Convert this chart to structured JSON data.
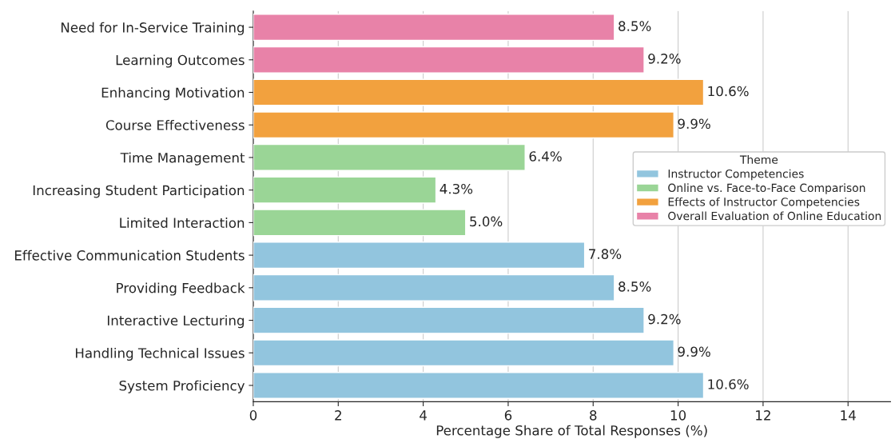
{
  "chart_data": {
    "type": "bar",
    "orientation": "horizontal",
    "categories": [
      "Need for In-Service Training",
      "Learning Outcomes",
      "Enhancing Motivation",
      "Course Effectiveness",
      "Time Management",
      "Increasing Student Participation",
      "Limited Interaction",
      "Effective Communication Students",
      "Providing Feedback",
      "Interactive Lecturing",
      "Handling Technical Issues",
      "System Proficiency"
    ],
    "series": [
      {
        "name": "Instructor Competencies",
        "color": "#92c5de",
        "values": [
          null,
          null,
          null,
          null,
          null,
          null,
          null,
          7.8,
          8.5,
          9.2,
          9.9,
          10.6
        ],
        "value_labels": [
          null,
          null,
          null,
          null,
          null,
          null,
          null,
          "7.8%",
          "8.5%",
          "9.2%",
          "9.9%",
          "10.6%"
        ]
      },
      {
        "name": "Online vs. Face-to-Face Comparison",
        "color": "#9ad596",
        "values": [
          null,
          null,
          null,
          null,
          6.4,
          4.3,
          5.0,
          null,
          null,
          null,
          null,
          null
        ],
        "value_labels": [
          null,
          null,
          null,
          null,
          "6.4%",
          "4.3%",
          "5.0%",
          null,
          null,
          null,
          null,
          null
        ]
      },
      {
        "name": "Effects of Instructor Competencies",
        "color": "#f2a13e",
        "values": [
          null,
          null,
          10.6,
          9.9,
          null,
          null,
          null,
          null,
          null,
          null,
          null,
          null
        ],
        "value_labels": [
          null,
          null,
          "10.6%",
          "9.9%",
          null,
          null,
          null,
          null,
          null,
          null,
          null,
          null
        ]
      },
      {
        "name": "Overall Evaluation of Online Education",
        "color": "#e882a8",
        "values": [
          8.5,
          9.2,
          null,
          null,
          null,
          null,
          null,
          null,
          null,
          null,
          null,
          null
        ],
        "value_labels": [
          "8.5%",
          "9.2%",
          null,
          null,
          null,
          null,
          null,
          null,
          null,
          null,
          null,
          null
        ]
      }
    ],
    "xlabel": "Percentage Share of Total Responses (%)",
    "legend_title": "Theme",
    "xlim": [
      0,
      15
    ],
    "xticks": [
      0,
      2,
      4,
      6,
      8,
      10,
      12,
      14
    ],
    "grid": "x",
    "legend": "right"
  }
}
